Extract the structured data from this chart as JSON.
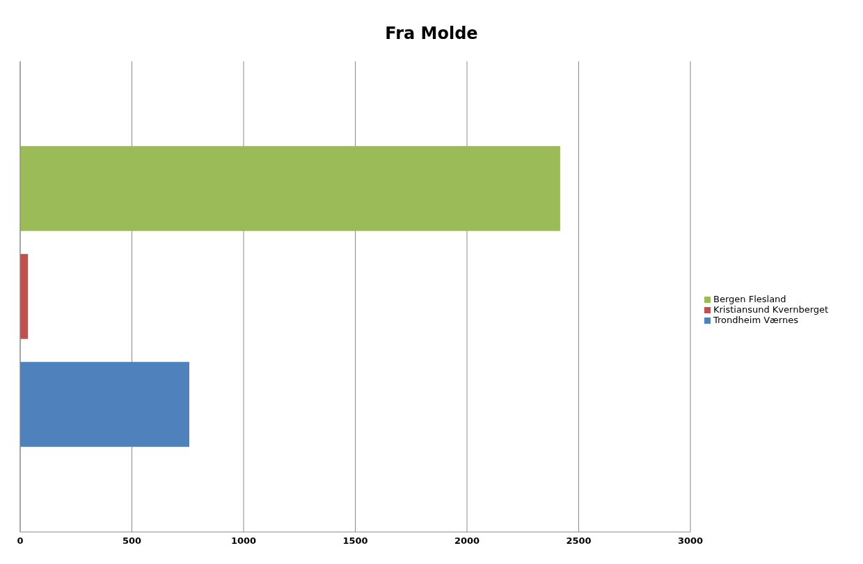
{
  "chart_data": {
    "type": "bar",
    "orientation": "horizontal",
    "title": "Fra Molde",
    "categories": [
      null
    ],
    "series": [
      {
        "name": "Bergen Flesland",
        "color": "#9bbb59",
        "values": [
          2417
        ]
      },
      {
        "name": "Kristiansund Kvernberget",
        "color": "#c0504d",
        "values": [
          35
        ]
      },
      {
        "name": "Trondheim Værnes",
        "color": "#4f81bd",
        "values": [
          757
        ]
      }
    ],
    "xlim": [
      0,
      3000
    ],
    "xticks": [
      0,
      500,
      1000,
      1500,
      2000,
      2500,
      3000
    ],
    "grid": "x",
    "legend": "right"
  }
}
